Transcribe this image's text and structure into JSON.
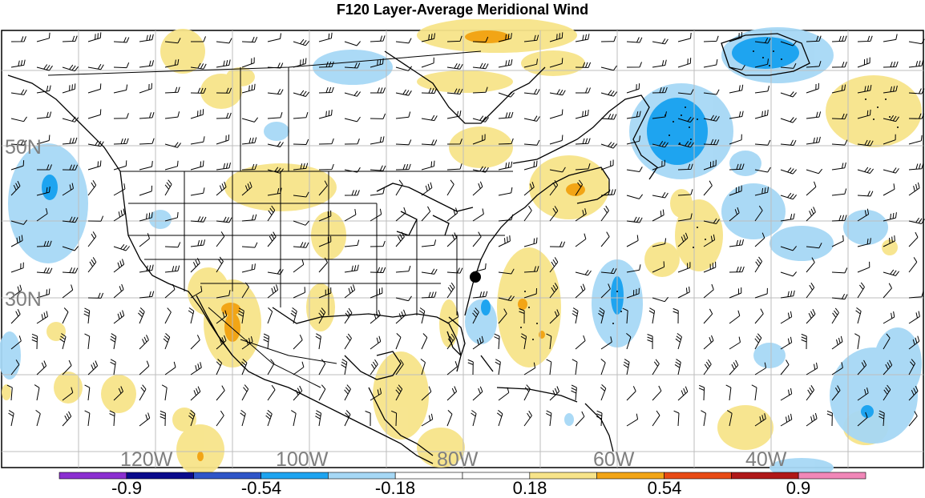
{
  "title": "F120 Layer-Average Meridional Wind",
  "map": {
    "lat_labels": [
      "50N",
      "30N"
    ],
    "lon_labels": [
      "120W",
      "100W",
      "80W",
      "60W",
      "40W"
    ]
  },
  "colorbar": {
    "colors": [
      "#8b2fd1",
      "#0a0a8c",
      "#2f55c8",
      "#1ea4f0",
      "#a6d8f5",
      "#ffffff",
      "#ffffff",
      "#f7e48a",
      "#f2a516",
      "#e84a14",
      "#b01818",
      "#f187b8"
    ],
    "labels": [
      "-0.9",
      "-0.54",
      "-0.18",
      "0.18",
      "0.54",
      "0.9"
    ]
  }
}
